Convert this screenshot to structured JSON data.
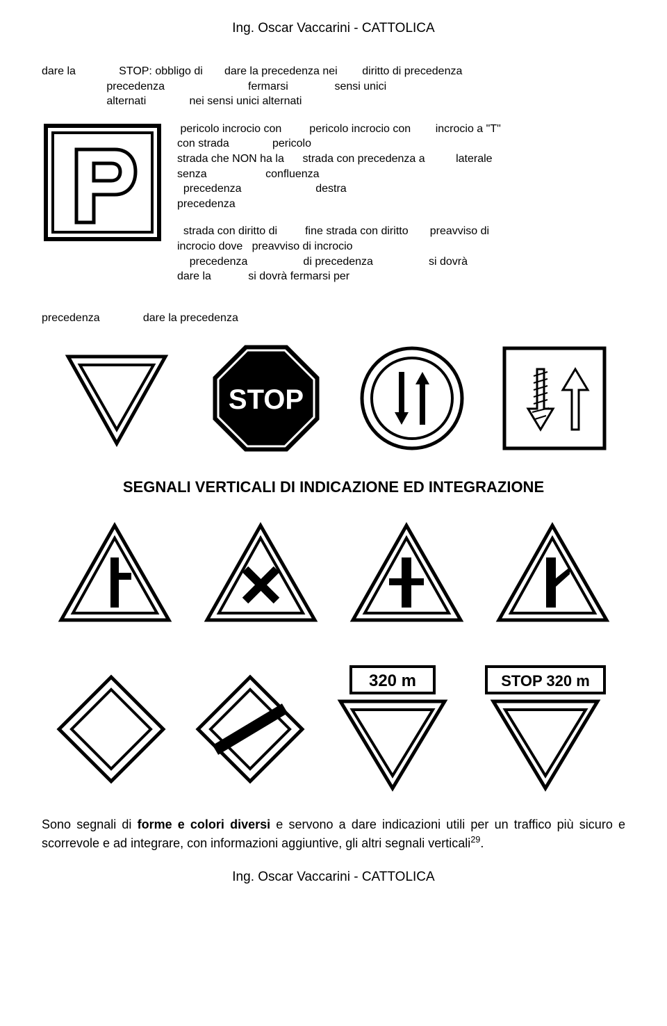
{
  "header": "Ing. Oscar Vaccarini - CATTOLICA",
  "footer": "Ing. Oscar Vaccarini - CATTOLICA",
  "text1": "dare la              STOP: obbligo di       dare la precedenza nei        diritto di precedenza\n                     precedenza                           fermarsi               sensi unici\n                     alternati              nei sensi unici alternati",
  "text2": " pericolo incrocio con         pericolo incrocio con        incrocio a \"T\"\ncon strada              pericolo\nstrada che NON ha la      strada con precedenza a          laterale\nsenza                   confluenza\n  precedenza                        destra\nprecedenza",
  "text3": "  strada con diritto di         fine strada con diritto       preavviso di\nincrocio dove   preavviso di incrocio\n    precedenza                  di precedenza                  si dovrà\ndare la            si dovrà fermarsi per",
  "text4": "precedenza              dare la precedenza",
  "heading": "SEGNALI VERTICALI DI INDICAZIONE ED INTEGRAZIONE",
  "paragraph_html": "Sono segnali di <b>forme e colori diversi</b> e servono a dare indicazioni utili per un traffico più sicuro e scorrevole e ad integrare, con informazioni aggiuntive, gli altri segnali verticali<span class='sup'>29</span>.",
  "colors": {
    "black": "#000000",
    "white": "#ffffff"
  },
  "signs": {
    "parking": {
      "letter": "P"
    },
    "stop": {
      "text": "STOP"
    },
    "distance_320": "320 m",
    "stop_320": "STOP 320 m"
  }
}
